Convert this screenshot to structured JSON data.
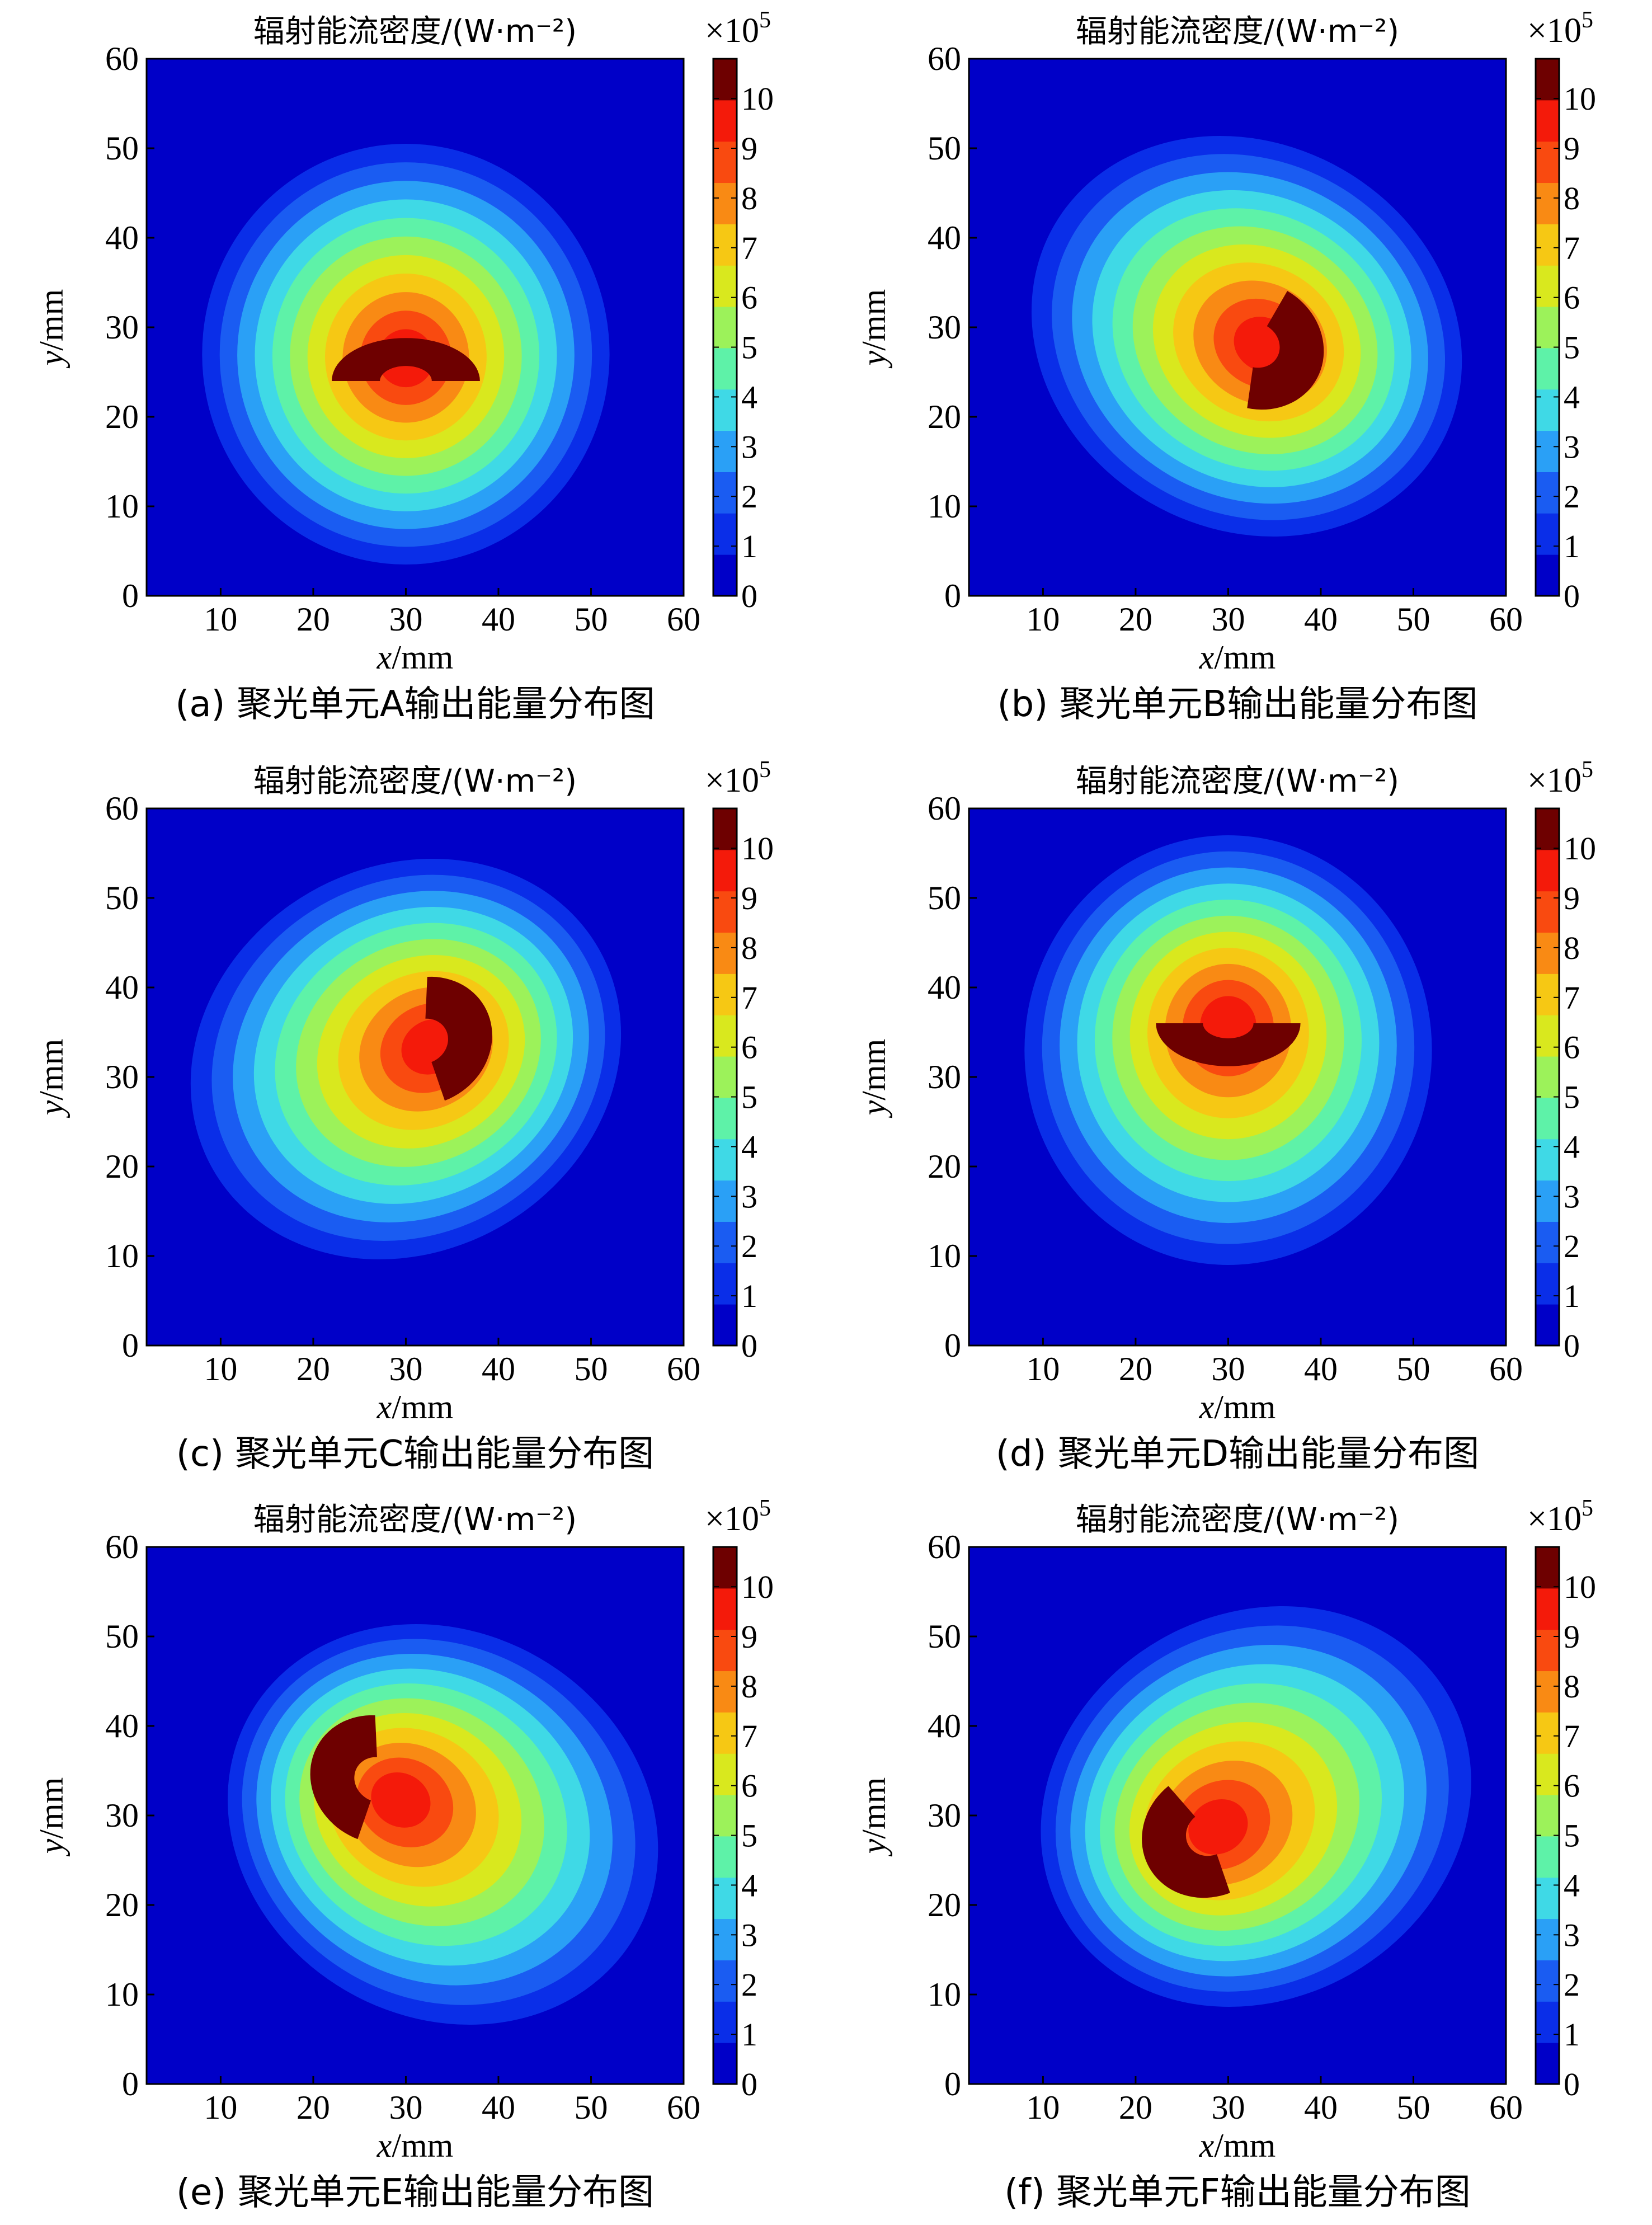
{
  "figure": {
    "panels_order": [
      "a",
      "b",
      "c",
      "d",
      "e",
      "f"
    ]
  },
  "chart_data": [
    {
      "id": "a",
      "type": "heatmap",
      "title": "辐射能流密度/(W·m⁻²)",
      "caption": "(a) 聚光单元A输出能量分布图",
      "xlabel_var": "x",
      "xlabel_unit": "/mm",
      "ylabel_var": "y",
      "ylabel_unit": "/mm",
      "xlim": [
        2,
        60
      ],
      "ylim": [
        0,
        60
      ],
      "xticks": [
        10,
        20,
        30,
        40,
        50,
        60
      ],
      "yticks": [
        0,
        10,
        20,
        30,
        40,
        50,
        60
      ],
      "colorbar": {
        "ticks": [
          0,
          1,
          2,
          3,
          4,
          5,
          6,
          7,
          8,
          9,
          10
        ],
        "max": 10.8,
        "multiplier_times": "×10",
        "multiplier_exp": "5"
      },
      "spot": {
        "cx": 30,
        "cy": 27,
        "rx": 22,
        "ry": 23.5,
        "rotation": 0,
        "peak_x": 30,
        "peak_y": 26,
        "peak_value": 10.8,
        "hot_crescent": {
          "cx": 30,
          "cy": 24,
          "rx": 8,
          "ry": 4.8,
          "rotation": 0,
          "angle_start": 0,
          "angle_end": 180
        }
      }
    },
    {
      "id": "b",
      "type": "heatmap",
      "title": "辐射能流密度/(W·m⁻²)",
      "caption": "(b) 聚光单元B输出能量分布图",
      "xlabel_var": "x",
      "xlabel_unit": "/mm",
      "ylabel_var": "y",
      "ylabel_unit": "/mm",
      "xlim": [
        2,
        60
      ],
      "ylim": [
        0,
        60
      ],
      "xticks": [
        10,
        20,
        30,
        40,
        50,
        60
      ],
      "yticks": [
        0,
        10,
        20,
        30,
        40,
        50,
        60
      ],
      "colorbar": {
        "ticks": [
          0,
          1,
          2,
          3,
          4,
          5,
          6,
          7,
          8,
          9,
          10
        ],
        "max": 10.8,
        "multiplier_times": "×10",
        "multiplier_exp": "5"
      },
      "spot": {
        "cx": 32,
        "cy": 29,
        "rx": 24,
        "ry": 21.5,
        "rotation": -30,
        "peak_x": 36,
        "peak_y": 27,
        "peak_value": 10.8,
        "hot_crescent": {
          "cx": 33,
          "cy": 28,
          "rx": 7.5,
          "ry": 7,
          "rotation": -30,
          "angle_start": -70,
          "angle_end": 90
        }
      }
    },
    {
      "id": "c",
      "type": "heatmap",
      "title": "辐射能流密度/(W·m⁻²)",
      "caption": "(c) 聚光单元C输出能量分布图",
      "xlabel_var": "x",
      "xlabel_unit": "/mm",
      "ylabel_var": "y",
      "ylabel_unit": "/mm",
      "xlim": [
        2,
        60
      ],
      "ylim": [
        0,
        60
      ],
      "xticks": [
        10,
        20,
        30,
        40,
        50,
        60
      ],
      "yticks": [
        0,
        10,
        20,
        30,
        40,
        50,
        60
      ],
      "colorbar": {
        "ticks": [
          0,
          1,
          2,
          3,
          4,
          5,
          6,
          7,
          8,
          9,
          10
        ],
        "max": 10.8,
        "multiplier_times": "×10",
        "multiplier_exp": "5"
      },
      "spot": {
        "cx": 30,
        "cy": 32,
        "rx": 24,
        "ry": 21.5,
        "rotation": 30,
        "peak_x": 36,
        "peak_y": 35,
        "peak_value": 10.8,
        "hot_crescent": {
          "cx": 32,
          "cy": 34,
          "rx": 7.5,
          "ry": 7,
          "rotation": 30,
          "angle_start": -100,
          "angle_end": 60
        }
      }
    },
    {
      "id": "d",
      "type": "heatmap",
      "title": "辐射能流密度/(W·m⁻²)",
      "caption": "(d) 聚光单元D输出能量分布图",
      "xlabel_var": "x",
      "xlabel_unit": "/mm",
      "ylabel_var": "y",
      "ylabel_unit": "/mm",
      "xlim": [
        2,
        60
      ],
      "ylim": [
        0,
        60
      ],
      "xticks": [
        10,
        20,
        30,
        40,
        50,
        60
      ],
      "yticks": [
        0,
        10,
        20,
        30,
        40,
        50,
        60
      ],
      "colorbar": {
        "ticks": [
          0,
          1,
          2,
          3,
          4,
          5,
          6,
          7,
          8,
          9,
          10
        ],
        "max": 10.8,
        "multiplier_times": "×10",
        "multiplier_exp": "5"
      },
      "spot": {
        "cx": 30,
        "cy": 33,
        "rx": 22,
        "ry": 24,
        "rotation": 0,
        "peak_x": 30,
        "peak_y": 39,
        "peak_value": 10.8,
        "hot_crescent": {
          "cx": 30,
          "cy": 36,
          "rx": 7.8,
          "ry": 4.8,
          "rotation": 0,
          "angle_start": 180,
          "angle_end": 360
        }
      }
    },
    {
      "id": "e",
      "type": "heatmap",
      "title": "辐射能流密度/(W·m⁻²)",
      "caption": "(e) 聚光单元E输出能量分布图",
      "xlabel_var": "x",
      "xlabel_unit": "/mm",
      "ylabel_var": "y",
      "ylabel_unit": "/mm",
      "xlim": [
        2,
        60
      ],
      "ylim": [
        0,
        60
      ],
      "xticks": [
        10,
        20,
        30,
        40,
        50,
        60
      ],
      "yticks": [
        0,
        10,
        20,
        30,
        40,
        50,
        60
      ],
      "colorbar": {
        "ticks": [
          0,
          1,
          2,
          3,
          4,
          5,
          6,
          7,
          8,
          9,
          10
        ],
        "max": 10.8,
        "multiplier_times": "×10",
        "multiplier_exp": "5"
      },
      "spot": {
        "cx": 34,
        "cy": 29,
        "rx": 24,
        "ry": 21.5,
        "rotation": -30,
        "peak_x": 24,
        "peak_y": 35,
        "peak_value": 10.8,
        "hot_crescent": {
          "cx": 27,
          "cy": 34,
          "rx": 7.5,
          "ry": 7,
          "rotation": -30,
          "angle_start": 120,
          "angle_end": 280
        }
      }
    },
    {
      "id": "f",
      "type": "heatmap",
      "title": "辐射能流密度/(W·m⁻²)",
      "caption": "(f) 聚光单元F输出能量分布图",
      "xlabel_var": "x",
      "xlabel_unit": "/mm",
      "ylabel_var": "y",
      "ylabel_unit": "/mm",
      "xlim": [
        2,
        60
      ],
      "ylim": [
        0,
        60
      ],
      "xticks": [
        10,
        20,
        30,
        40,
        50,
        60
      ],
      "yticks": [
        0,
        10,
        20,
        30,
        40,
        50,
        60
      ],
      "colorbar": {
        "ticks": [
          0,
          1,
          2,
          3,
          4,
          5,
          6,
          7,
          8,
          9,
          10
        ],
        "max": 10.8,
        "multiplier_times": "×10",
        "multiplier_exp": "5"
      },
      "spot": {
        "cx": 33,
        "cy": 31,
        "rx": 24,
        "ry": 21.5,
        "rotation": 30,
        "peak_x": 24,
        "peak_y": 26,
        "peak_value": 10.8,
        "hot_crescent": {
          "cx": 28,
          "cy": 28,
          "rx": 7.5,
          "ry": 7,
          "rotation": 30,
          "angle_start": 100,
          "angle_end": 260
        }
      }
    }
  ],
  "colors": {
    "background_field": "#1a2be0",
    "colormap": [
      "#0000c8",
      "#0a2ee8",
      "#1a5cf2",
      "#2aa0f6",
      "#3fd9e6",
      "#5ef2a8",
      "#9cf25a",
      "#d9e81e",
      "#f6c814",
      "#f98a14",
      "#f94a10",
      "#f41a0a",
      "#6e0000"
    ]
  }
}
